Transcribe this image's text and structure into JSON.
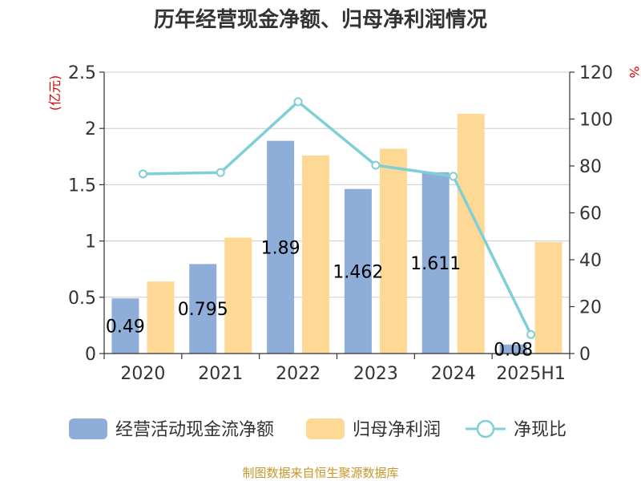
{
  "chart_data": {
    "type": "bar",
    "title": "历年经营现金净额、归母净利润情况",
    "categories": [
      "2020",
      "2021",
      "2022",
      "2023",
      "2024",
      "2025H1"
    ],
    "series": [
      {
        "name": "经营活动现金流净额",
        "type": "bar",
        "axis": "left",
        "color": "#8eadd9",
        "values": [
          0.49,
          0.795,
          1.89,
          1.462,
          1.611,
          0.08
        ],
        "labels": [
          "0.49",
          "0.795",
          "1.89",
          "1.462",
          "1.611",
          "0.08"
        ]
      },
      {
        "name": "归母净利润",
        "type": "bar",
        "axis": "left",
        "color": "#fdd995",
        "values": [
          0.64,
          1.03,
          1.76,
          1.82,
          2.13,
          0.99
        ]
      },
      {
        "name": "净现比",
        "type": "line",
        "axis": "right",
        "color": "#7fd0d6",
        "values": [
          76.6,
          77.2,
          107.4,
          80.3,
          75.6,
          8.1
        ]
      }
    ],
    "y_left": {
      "unit": "(亿元)",
      "ylim": [
        0,
        2.5
      ],
      "ticks": [
        "0",
        "0.5",
        "1",
        "1.5",
        "2",
        "2.5"
      ]
    },
    "y_right": {
      "unit": "%",
      "ylim": [
        0,
        120
      ],
      "ticks": [
        "0",
        "20",
        "40",
        "60",
        "80",
        "100",
        "120"
      ]
    },
    "grid": true,
    "legend_position": "bottom"
  },
  "source": "制图数据来自恒生聚源数据库"
}
